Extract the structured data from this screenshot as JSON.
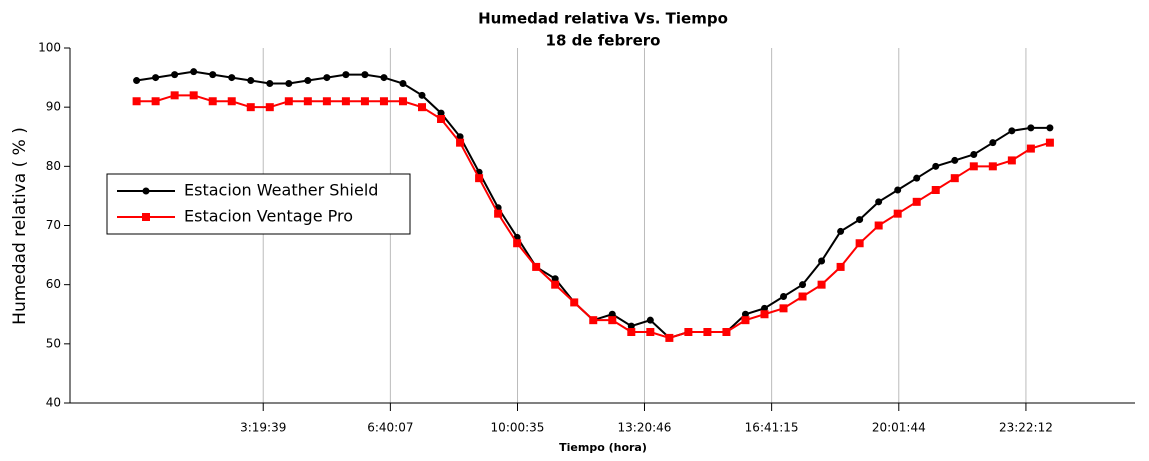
{
  "chart_data": {
    "type": "line",
    "title": "Humedad relativa Vs. Tiempo",
    "subtitle": "18 de febrero",
    "xlabel": "Tiempo (hora)",
    "ylabel": "Humedad relativa ( % )",
    "x": [
      0,
      1800,
      3600,
      5400,
      7200,
      9000,
      10800,
      12600,
      14400,
      16200,
      18000,
      19800,
      21600,
      23400,
      25200,
      27000,
      28800,
      30600,
      32400,
      34200,
      36000,
      37800,
      39600,
      41400,
      43200,
      45000,
      46800,
      48600,
      50400,
      52200,
      54000,
      55800,
      57600,
      59400,
      61200,
      63000,
      64800,
      66600,
      68400,
      70200,
      72000,
      73800,
      75600,
      77400,
      79200,
      81000,
      82800,
      84600,
      86400
    ],
    "series": [
      {
        "name": "Estacion Weather Shield",
        "color": "#000000",
        "marker": "circle",
        "values": [
          94.5,
          95,
          95.5,
          96,
          95.5,
          95,
          94.5,
          94,
          94,
          94.5,
          95,
          95.5,
          95.5,
          95,
          94,
          92,
          89,
          85,
          79,
          73,
          68,
          63,
          61,
          57,
          54,
          55,
          53,
          54,
          51,
          52,
          52,
          52,
          55,
          56,
          58,
          60,
          64,
          69,
          71,
          74,
          76,
          78,
          80,
          81,
          82,
          84,
          86,
          86.5,
          86.5
        ]
      },
      {
        "name": "Estacion Ventage Pro",
        "color": "#ff0000",
        "marker": "square",
        "values": [
          91,
          91,
          92,
          92,
          91,
          91,
          90,
          90,
          91,
          91,
          91,
          91,
          91,
          91,
          91,
          90,
          88,
          84,
          78,
          72,
          67,
          63,
          60,
          57,
          54,
          54,
          52,
          52,
          51,
          52,
          52,
          52,
          54,
          55,
          56,
          58,
          60,
          63,
          67,
          70,
          72,
          74,
          76,
          78,
          80,
          80,
          81,
          83,
          84
        ]
      }
    ],
    "xlim": [
      -6300,
      94450
    ],
    "xticks": [
      {
        "value": 11979,
        "label": "3:19:39"
      },
      {
        "value": 24007,
        "label": "6:40:07"
      },
      {
        "value": 36035,
        "label": "10:00:35"
      },
      {
        "value": 48046,
        "label": "13:20:46"
      },
      {
        "value": 60075,
        "label": "16:41:15"
      },
      {
        "value": 72104,
        "label": "20:01:44"
      },
      {
        "value": 84132,
        "label": "23:22:12"
      }
    ],
    "ylim": [
      40,
      100
    ],
    "yticks": [
      40,
      50,
      60,
      70,
      80,
      90,
      100
    ],
    "grid": true,
    "legend": "upper left"
  }
}
